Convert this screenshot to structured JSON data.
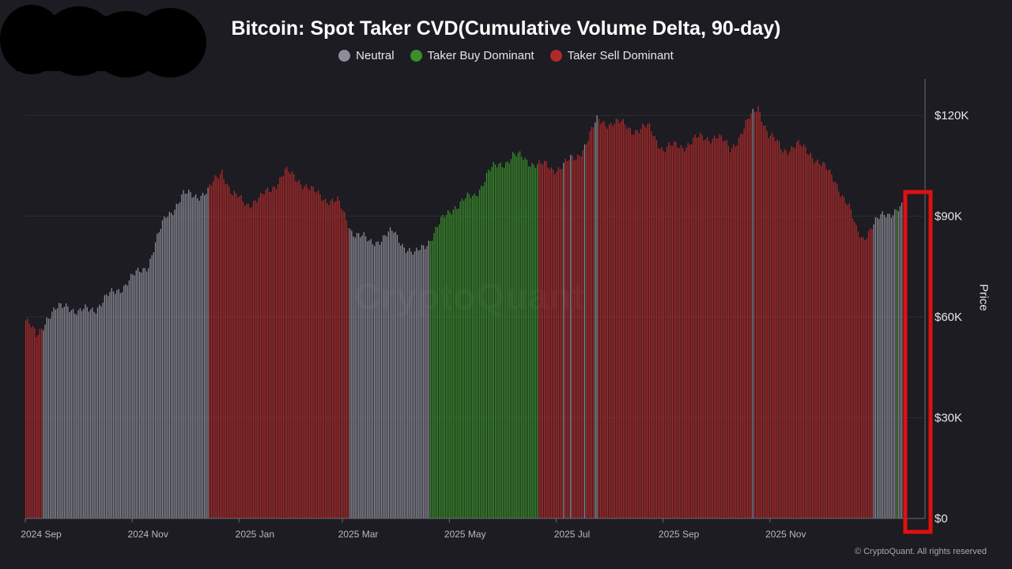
{
  "chart_data": {
    "type": "bar",
    "title": "Bitcoin: Spot Taker CVD(Cumulative Volume Delta, 90-day)",
    "legend": [
      {
        "name": "Neutral",
        "color": "#8e8e99"
      },
      {
        "name": "Taker Buy Dominant",
        "color": "#3a8f2a"
      },
      {
        "name": "Taker Sell Dominant",
        "color": "#b02a2a"
      }
    ],
    "ylabel": "Price",
    "ylim": [
      0,
      130000
    ],
    "yticks": [
      {
        "value": 0,
        "label": "$0"
      },
      {
        "value": 30000,
        "label": "$30K"
      },
      {
        "value": 60000,
        "label": "$60K"
      },
      {
        "value": 90000,
        "label": "$90K"
      },
      {
        "value": 120000,
        "label": "$120K"
      }
    ],
    "xticks": [
      "2024 Sep",
      "2024 Nov",
      "2025 Jan",
      "2025 Mar",
      "2025 May",
      "2025 Jul",
      "2025 Sep",
      "2025 Nov"
    ],
    "price_keypoints_day_usd": [
      [
        0,
        59000
      ],
      [
        6,
        54000
      ],
      [
        12,
        60000
      ],
      [
        24,
        64000
      ],
      [
        30,
        61000
      ],
      [
        40,
        63000
      ],
      [
        52,
        68000
      ],
      [
        62,
        72000
      ],
      [
        70,
        76000
      ],
      [
        80,
        90000
      ],
      [
        90,
        96000
      ],
      [
        104,
        97000
      ],
      [
        112,
        104000
      ],
      [
        118,
        96000
      ],
      [
        126,
        94000
      ],
      [
        134,
        95000
      ],
      [
        148,
        103000
      ],
      [
        156,
        101000
      ],
      [
        164,
        97000
      ],
      [
        178,
        94000
      ],
      [
        186,
        86000
      ],
      [
        196,
        82000
      ],
      [
        210,
        85000
      ],
      [
        222,
        78000
      ],
      [
        230,
        83000
      ],
      [
        244,
        93000
      ],
      [
        256,
        96000
      ],
      [
        264,
        103000
      ],
      [
        278,
        108000
      ],
      [
        290,
        106000
      ],
      [
        300,
        104000
      ],
      [
        314,
        107000
      ],
      [
        326,
        118000
      ],
      [
        336,
        118000
      ],
      [
        346,
        116000
      ],
      [
        356,
        116000
      ],
      [
        364,
        110000
      ],
      [
        374,
        111000
      ],
      [
        384,
        113000
      ],
      [
        394,
        114000
      ],
      [
        402,
        110000
      ],
      [
        410,
        116000
      ],
      [
        418,
        123000
      ],
      [
        424,
        114000
      ],
      [
        432,
        110000
      ],
      [
        440,
        111000
      ],
      [
        448,
        109000
      ],
      [
        456,
        104000
      ],
      [
        462,
        101000
      ],
      [
        470,
        92000
      ],
      [
        474,
        86000
      ],
      [
        478,
        84000
      ],
      [
        484,
        87000
      ],
      [
        490,
        91000
      ],
      [
        500,
        92000
      ]
    ],
    "regime_segments_days": [
      {
        "from": 0,
        "to": 9,
        "state": "Taker Sell Dominant"
      },
      {
        "from": 10,
        "to": 104,
        "state": "Neutral"
      },
      {
        "from": 105,
        "to": 184,
        "state": "Taker Sell Dominant"
      },
      {
        "from": 185,
        "to": 230,
        "state": "Neutral"
      },
      {
        "from": 231,
        "to": 292,
        "state": "Taker Buy Dominant"
      },
      {
        "from": 293,
        "to": 306,
        "state": "Taker Sell Dominant"
      },
      {
        "from": 307,
        "to": 307,
        "state": "Neutral"
      },
      {
        "from": 308,
        "to": 310,
        "state": "Taker Sell Dominant"
      },
      {
        "from": 311,
        "to": 311,
        "state": "Neutral"
      },
      {
        "from": 312,
        "to": 318,
        "state": "Taker Sell Dominant"
      },
      {
        "from": 319,
        "to": 319,
        "state": "Neutral"
      },
      {
        "from": 320,
        "to": 324,
        "state": "Taker Sell Dominant"
      },
      {
        "from": 325,
        "to": 326,
        "state": "Neutral"
      },
      {
        "from": 327,
        "to": 414,
        "state": "Taker Sell Dominant"
      },
      {
        "from": 415,
        "to": 415,
        "state": "Neutral"
      },
      {
        "from": 416,
        "to": 483,
        "state": "Taker Sell Dominant"
      },
      {
        "from": 484,
        "to": 496,
        "state": "Neutral"
      },
      {
        "from": 497,
        "to": 497,
        "state": "Taker Buy Dominant"
      },
      {
        "from": 498,
        "to": 500,
        "state": "Neutral"
      }
    ]
  },
  "footer": "© CryptoQuant. All rights reserved",
  "watermark": "CryptoQuant"
}
